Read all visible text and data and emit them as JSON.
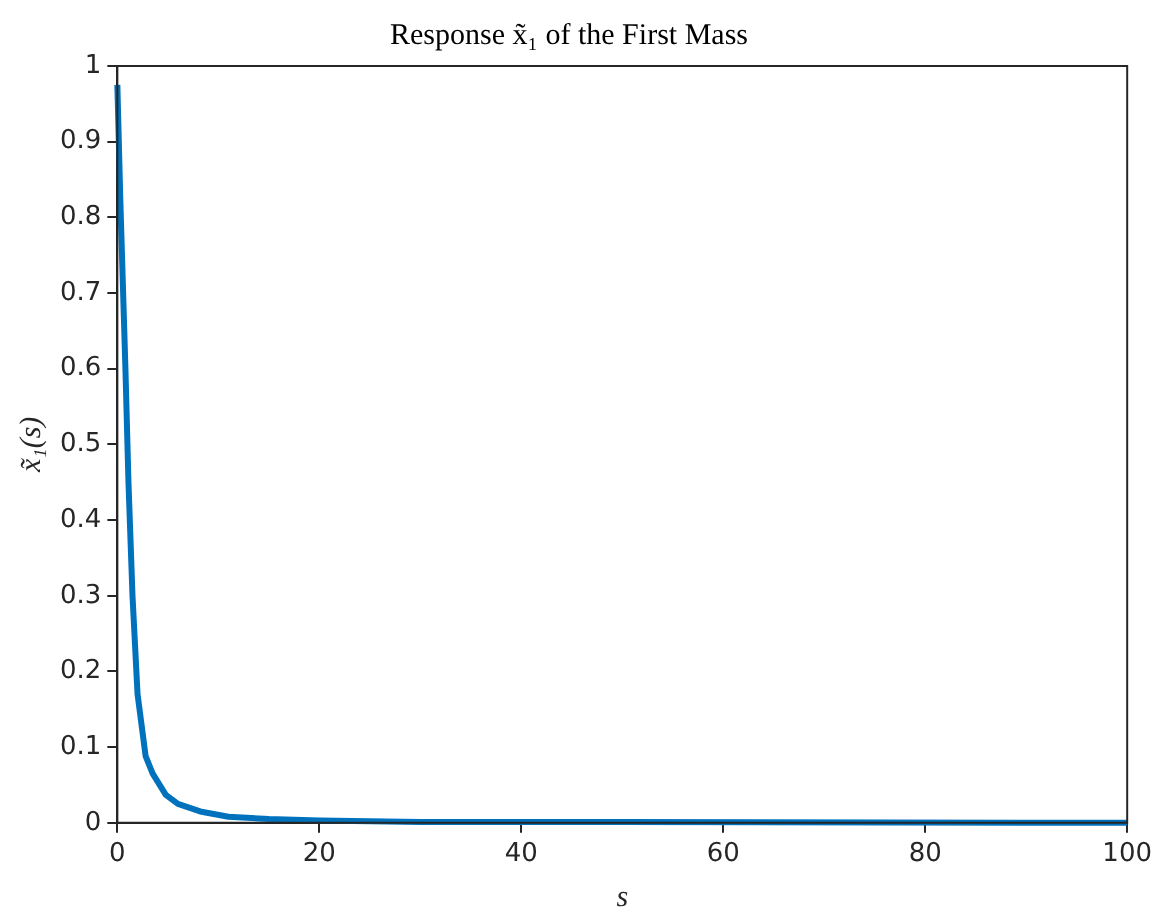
{
  "chart_data": {
    "type": "line",
    "title": "Response x̃₁ of the First Mass",
    "xlabel": "s",
    "ylabel": "x̃₁(s)",
    "x": [
      0,
      0.3,
      0.8,
      1.1,
      1.5,
      2,
      2.8,
      3.5,
      4.8,
      6,
      8.2,
      11,
      15,
      20,
      30,
      50,
      100
    ],
    "series": [
      {
        "color": "#0072bd",
        "values": [
          0.975,
          0.82,
          0.6,
          0.45,
          0.3,
          0.17,
          0.088,
          0.065,
          0.037,
          0.025,
          0.015,
          0.008,
          0.005,
          0.003,
          0.001,
          0.001,
          0
        ]
      }
    ],
    "xlim": [
      0,
      100
    ],
    "xticks": [
      0,
      20,
      40,
      60,
      80,
      100
    ],
    "ylim": [
      0,
      1
    ],
    "yticks": [
      0,
      0.1,
      0.2,
      0.3,
      0.4,
      0.5,
      0.6,
      0.7,
      0.8,
      0.9,
      1
    ],
    "grid": false,
    "legend": false,
    "marker": "none",
    "line_style": "solid"
  }
}
